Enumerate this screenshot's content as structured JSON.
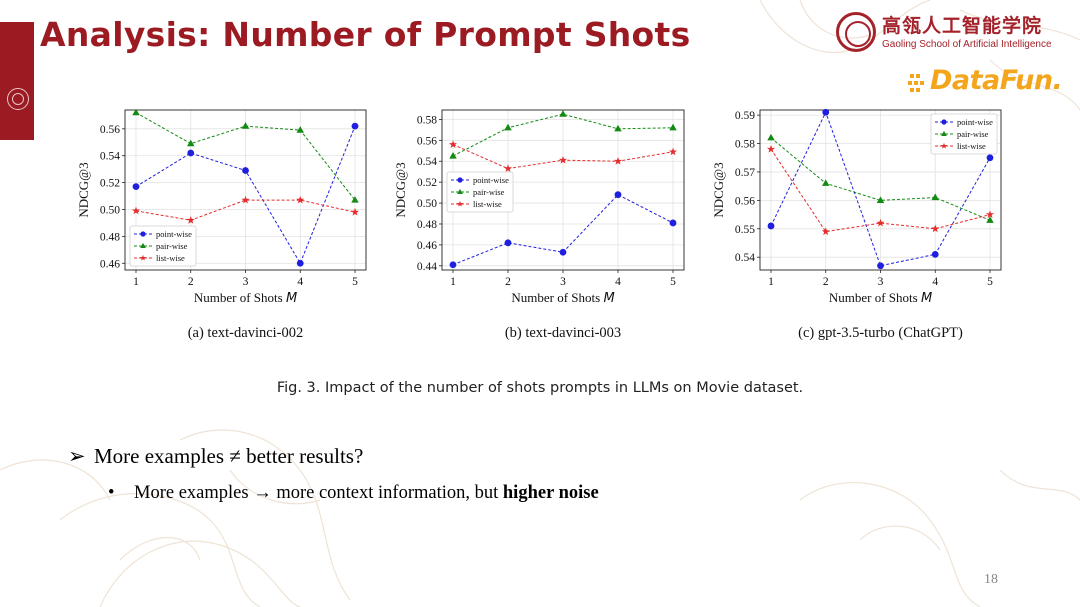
{
  "slide": {
    "title": "Analysis: Number of Prompt Shots",
    "page_number": "18",
    "colors": {
      "title": "#9c1b23",
      "accent": "#a4222a",
      "datafun": "#f3a51b"
    }
  },
  "logo": {
    "name_cn": "高瓴人工智能学院",
    "name_en": "Gaoling School of Artificial Intelligence",
    "icon": "university-seal-icon"
  },
  "datafun_logo": {
    "text": "DataFun."
  },
  "figure_caption": "Fig. 3.  Impact of the number of shots prompts in LLMs on Movie dataset.",
  "bullets": {
    "main": "More examples ≠ better results?",
    "main_marker": "➢",
    "sub_marker": "•",
    "sub_prefix": "More examples ",
    "sub_arrow": "→",
    "sub_middle": " more context information, but ",
    "sub_bold": "higher noise"
  },
  "chart_data": [
    {
      "type": "line",
      "caption": "(a)  text-davinci-002",
      "xlabel": "Number of Shots M",
      "ylabel": "NDCG@3",
      "x": [
        1,
        2,
        3,
        4,
        5
      ],
      "xlim": [
        1,
        5
      ],
      "ylim": [
        0.455,
        0.574
      ],
      "yticks": [
        "0.46",
        "0.48",
        "0.50",
        "0.52",
        "0.54",
        "0.56"
      ],
      "ytick_values": [
        0.46,
        0.48,
        0.5,
        0.52,
        0.54,
        0.56
      ],
      "grid": true,
      "legend_position": "bottom-left",
      "series": [
        {
          "name": "point-wise",
          "color": "#1f1fe0",
          "marker": "circle",
          "values": [
            0.517,
            0.542,
            0.529,
            0.46,
            0.562
          ]
        },
        {
          "name": "pair-wise",
          "color": "#138a13",
          "marker": "triangle",
          "values": [
            0.572,
            0.549,
            0.562,
            0.559,
            0.507
          ]
        },
        {
          "name": "list-wise",
          "color": "#e52b2b",
          "marker": "star",
          "values": [
            0.499,
            0.492,
            0.507,
            0.507,
            0.498
          ]
        }
      ]
    },
    {
      "type": "line",
      "caption": "(b)  text-davinci-003",
      "xlabel": "Number of Shots M",
      "ylabel": "NDCG@3",
      "x": [
        1,
        2,
        3,
        4,
        5
      ],
      "xlim": [
        1,
        5
      ],
      "ylim": [
        0.436,
        0.589
      ],
      "yticks": [
        "0.44",
        "0.46",
        "0.48",
        "0.50",
        "0.52",
        "0.54",
        "0.56",
        "0.58"
      ],
      "ytick_values": [
        0.44,
        0.46,
        0.48,
        0.5,
        0.52,
        0.54,
        0.56,
        0.58
      ],
      "grid": true,
      "legend_position": "center-left",
      "series": [
        {
          "name": "point-wise",
          "color": "#1f1fe0",
          "marker": "circle",
          "values": [
            0.441,
            0.462,
            0.453,
            0.508,
            0.481
          ]
        },
        {
          "name": "pair-wise",
          "color": "#138a13",
          "marker": "triangle",
          "values": [
            0.545,
            0.572,
            0.585,
            0.571,
            0.572
          ]
        },
        {
          "name": "list-wise",
          "color": "#e52b2b",
          "marker": "star",
          "values": [
            0.556,
            0.533,
            0.541,
            0.54,
            0.549
          ]
        }
      ]
    },
    {
      "type": "line",
      "caption": "(c)  gpt-3.5-turbo (ChatGPT)",
      "xlabel": "Number of Shots M",
      "ylabel": "NDCG@3",
      "x": [
        1,
        2,
        3,
        4,
        5
      ],
      "xlim": [
        1,
        5
      ],
      "ylim": [
        0.5355,
        0.5918
      ],
      "yticks": [
        "0.54",
        "0.55",
        "0.56",
        "0.57",
        "0.58",
        "0.59"
      ],
      "ytick_values": [
        0.54,
        0.55,
        0.56,
        0.57,
        0.58,
        0.59
      ],
      "grid": true,
      "legend_position": "top-right",
      "series": [
        {
          "name": "point-wise",
          "color": "#1f1fe0",
          "marker": "circle",
          "values": [
            0.551,
            0.591,
            0.537,
            0.541,
            0.575
          ]
        },
        {
          "name": "pair-wise",
          "color": "#138a13",
          "marker": "triangle",
          "values": [
            0.582,
            0.566,
            0.56,
            0.561,
            0.553
          ]
        },
        {
          "name": "list-wise",
          "color": "#e52b2b",
          "marker": "star",
          "values": [
            0.578,
            0.549,
            0.552,
            0.55,
            0.555
          ]
        }
      ]
    }
  ]
}
